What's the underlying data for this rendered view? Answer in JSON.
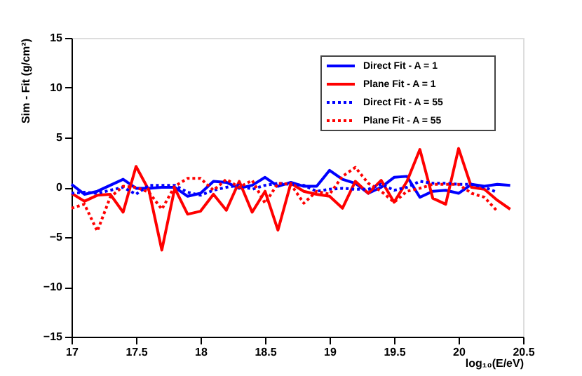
{
  "chart_data": {
    "type": "line",
    "xlabel": "log₁₀(E/eV)",
    "ylabel": "Sim - Fit (g/cm²)",
    "x": [
      17.0,
      17.1,
      17.2,
      17.3,
      17.4,
      17.5,
      17.6,
      17.7,
      17.8,
      17.9,
      18.0,
      18.1,
      18.2,
      18.3,
      18.4,
      18.5,
      18.6,
      18.7,
      18.8,
      18.9,
      19.0,
      19.1,
      19.2,
      19.3,
      19.4,
      19.5,
      19.6,
      19.7,
      19.8,
      19.9,
      20.0,
      20.1,
      20.2,
      20.3,
      20.4
    ],
    "series": [
      {
        "name": "Direct Fit - A = 1",
        "color": "#0000ff",
        "line_style": "solid",
        "values": [
          0.3,
          -0.7,
          -0.4,
          0.2,
          0.8,
          -0.1,
          -0.1,
          0.0,
          0.0,
          -0.9,
          -0.6,
          0.6,
          0.5,
          -0.1,
          0.2,
          1.0,
          0.1,
          0.5,
          0.1,
          0.1,
          1.7,
          0.8,
          0.4,
          -0.6,
          0.0,
          1.0,
          1.1,
          -1.0,
          -0.4,
          -0.3,
          -0.6,
          0.3,
          0.1,
          0.3,
          0.2
        ]
      },
      {
        "name": "Plane Fit - A = 1",
        "color": "#ff0000",
        "line_style": "solid",
        "values": [
          -0.6,
          -1.4,
          -0.8,
          -0.7,
          -2.5,
          2.1,
          -0.3,
          -6.3,
          -0.1,
          -2.7,
          -2.4,
          -0.7,
          -2.3,
          0.6,
          -2.5,
          -0.4,
          -4.3,
          0.4,
          -0.4,
          -0.7,
          -0.9,
          -2.1,
          0.6,
          -0.6,
          0.7,
          -1.5,
          0.6,
          3.8,
          -1.1,
          -1.7,
          3.9,
          0.0,
          -0.2,
          -1.3,
          -2.2
        ]
      },
      {
        "name": "Direct Fit - A = 55",
        "color": "#0000ff",
        "line_style": "dotted",
        "values": [
          -0.6,
          -0.5,
          -0.6,
          -0.3,
          0.0,
          -0.7,
          0.2,
          0.2,
          0.2,
          -0.5,
          -0.8,
          -0.3,
          0.0,
          0.2,
          -0.2,
          0.2,
          0.4,
          0.3,
          0.2,
          -0.4,
          -0.2,
          -0.1,
          -0.2,
          -0.2,
          0.3,
          -0.3,
          0.0,
          0.6,
          0.4,
          0.4,
          0.3,
          0.3,
          0.0,
          -0.5,
          null
        ]
      },
      {
        "name": "Plane Fit - A = 55",
        "color": "#ff0000",
        "line_style": "dotted",
        "values": [
          -2.1,
          -1.7,
          -4.4,
          -1.0,
          0.1,
          0.0,
          -0.5,
          -2.2,
          0.1,
          0.9,
          0.9,
          -0.3,
          0.8,
          0.0,
          0.7,
          -1.6,
          0.4,
          0.3,
          -1.6,
          -0.4,
          -0.7,
          1.1,
          2.0,
          0.4,
          -0.4,
          -1.5,
          -0.4,
          -0.1,
          0.3,
          0.3,
          0.3,
          -0.6,
          -1.0,
          -2.4,
          null
        ]
      }
    ],
    "xlim": [
      17,
      20.5
    ],
    "xticks": [
      17,
      17.5,
      18,
      18.5,
      19,
      19.5,
      20,
      20.5
    ],
    "ylim": [
      -15,
      15
    ],
    "yticks": [
      -15,
      -10,
      -5,
      0,
      5,
      10,
      15
    ],
    "grid": false,
    "legend": "top right",
    "marker": "none"
  }
}
